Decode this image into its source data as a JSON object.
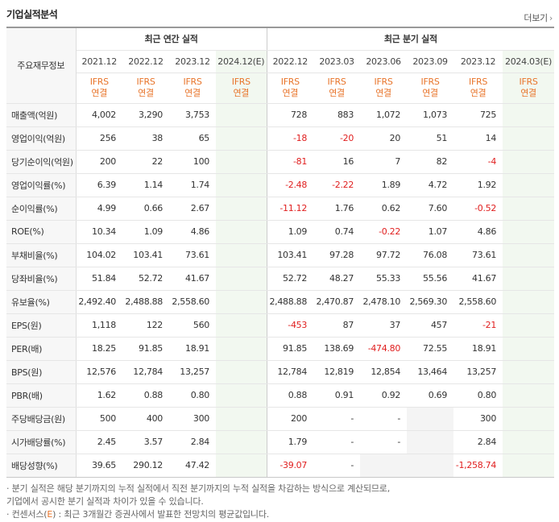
{
  "header": {
    "title": "기업실적분석",
    "more_label": "더보기"
  },
  "table": {
    "row_header_label": "주요재무정보",
    "annual_group_label": "최근 연간 실적",
    "quarter_group_label": "최근 분기 실적",
    "annual_dates": [
      "2021.12",
      "2022.12",
      "2023.12",
      "2024.12(E)"
    ],
    "quarter_dates": [
      "2022.12",
      "2023.03",
      "2023.06",
      "2023.09",
      "2023.12",
      "2024.03(E)"
    ],
    "ifrs_line1": "IFRS",
    "ifrs_line2": "연결",
    "rows": [
      {
        "label": "매출액(억원)",
        "annual": [
          "4,002",
          "3,290",
          "3,753",
          ""
        ],
        "quarter": [
          "728",
          "883",
          "1,072",
          "1,073",
          "725",
          ""
        ]
      },
      {
        "label": "영업이익(억원)",
        "annual": [
          "256",
          "38",
          "65",
          ""
        ],
        "quarter": [
          "-18",
          "-20",
          "20",
          "51",
          "14",
          ""
        ]
      },
      {
        "label": "당기순이익(억원)",
        "annual": [
          "200",
          "22",
          "100",
          ""
        ],
        "quarter": [
          "-81",
          "16",
          "7",
          "82",
          "-4",
          ""
        ]
      },
      {
        "label": "영업이익률(%)",
        "annual": [
          "6.39",
          "1.14",
          "1.74",
          ""
        ],
        "quarter": [
          "-2.48",
          "-2.22",
          "1.89",
          "4.72",
          "1.92",
          ""
        ]
      },
      {
        "label": "순이익률(%)",
        "annual": [
          "4.99",
          "0.66",
          "2.67",
          ""
        ],
        "quarter": [
          "-11.12",
          "1.76",
          "0.62",
          "7.60",
          "-0.52",
          ""
        ]
      },
      {
        "label": "ROE(%)",
        "annual": [
          "10.34",
          "1.09",
          "4.86",
          ""
        ],
        "quarter": [
          "1.09",
          "0.74",
          "-0.22",
          "1.07",
          "4.86",
          ""
        ]
      },
      {
        "label": "부채비율(%)",
        "annual": [
          "104.02",
          "103.41",
          "73.61",
          ""
        ],
        "quarter": [
          "103.41",
          "97.28",
          "97.72",
          "76.08",
          "73.61",
          ""
        ]
      },
      {
        "label": "당좌비율(%)",
        "annual": [
          "51.84",
          "52.72",
          "41.67",
          ""
        ],
        "quarter": [
          "52.72",
          "48.27",
          "55.33",
          "55.56",
          "41.67",
          ""
        ]
      },
      {
        "label": "유보율(%)",
        "annual": [
          "2,492.40",
          "2,488.88",
          "2,558.60",
          ""
        ],
        "quarter": [
          "2,488.88",
          "2,470.87",
          "2,478.10",
          "2,569.30",
          "2,558.60",
          ""
        ]
      },
      {
        "label": "EPS(원)",
        "annual": [
          "1,118",
          "122",
          "560",
          ""
        ],
        "quarter": [
          "-453",
          "87",
          "37",
          "457",
          "-21",
          ""
        ]
      },
      {
        "label": "PER(배)",
        "annual": [
          "18.25",
          "91.85",
          "18.91",
          ""
        ],
        "quarter": [
          "91.85",
          "138.69",
          "-474.80",
          "72.55",
          "18.91",
          ""
        ]
      },
      {
        "label": "BPS(원)",
        "annual": [
          "12,576",
          "12,784",
          "13,257",
          ""
        ],
        "quarter": [
          "12,784",
          "12,819",
          "12,854",
          "13,464",
          "13,257",
          ""
        ]
      },
      {
        "label": "PBR(배)",
        "annual": [
          "1.62",
          "0.88",
          "0.80",
          ""
        ],
        "quarter": [
          "0.88",
          "0.91",
          "0.92",
          "0.69",
          "0.80",
          ""
        ]
      },
      {
        "label": "주당배당금(원)",
        "annual": [
          "500",
          "400",
          "300",
          ""
        ],
        "quarter": [
          "200",
          "-",
          "-",
          "",
          "300",
          ""
        ]
      },
      {
        "label": "시가배당률(%)",
        "annual": [
          "2.45",
          "3.57",
          "2.84",
          ""
        ],
        "quarter": [
          "1.79",
          "-",
          "-",
          "",
          "2.84",
          ""
        ]
      },
      {
        "label": "배당성향(%)",
        "annual": [
          "39.65",
          "290.12",
          "47.42",
          ""
        ],
        "quarter": [
          "-39.07",
          "-",
          "",
          "",
          "-1,258.74",
          ""
        ]
      }
    ]
  },
  "notes": {
    "line1": "· 분기 실적은 해당 분기까지의 누적 실적에서 직전 분기까지의 누적 실적을 차감하는 방식으로 계산되므로,",
    "line2": "  기업에서 공시한 분기 실적과 차이가 있을 수 있습니다.",
    "line3_prefix": "· 컨센서스(",
    "line3_e": "E",
    "line3_suffix": ") : 최근 3개월간 증권사에서 발표한 전망치의 평균값입니다."
  },
  "colors": {
    "negative": "#e01e1e",
    "ifrs": "#e8742a",
    "estimate_bg": "#f2f8f0"
  }
}
